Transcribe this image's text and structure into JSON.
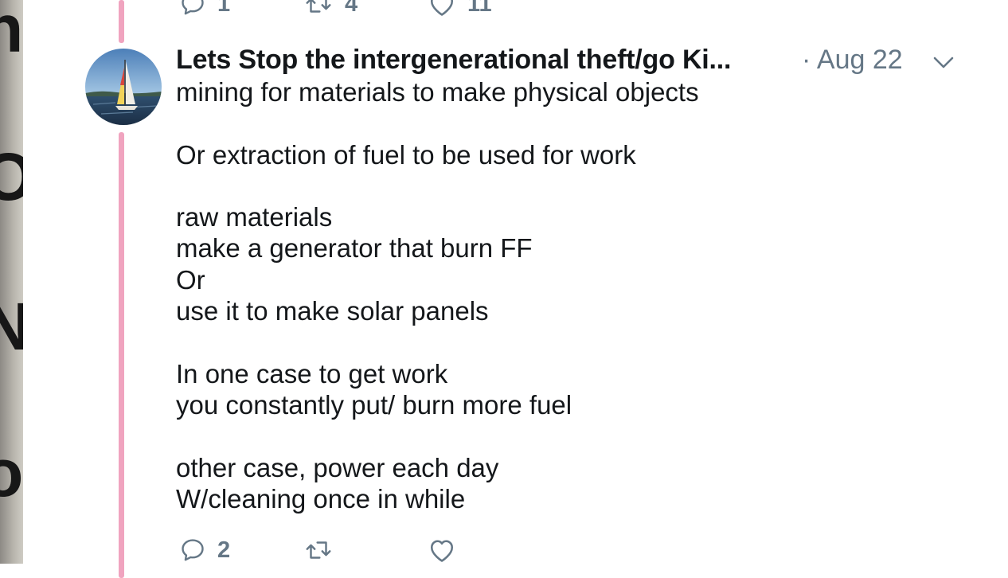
{
  "previous_tweet": {
    "actions": {
      "reply_count": "1",
      "retweet_count": "4",
      "like_count": "11"
    }
  },
  "tweet": {
    "display_name": "Lets Stop the intergenerational theft/go Ki...",
    "date": "· Aug 22",
    "body_lines": [
      "mining for materials to make physical objects",
      "",
      "Or extraction of fuel to be used for work",
      "",
      "raw materials",
      "make a generator that burn FF",
      "Or",
      "use it to make solar panels",
      "",
      "In one case to get work",
      "you constantly put/ burn more fuel",
      "",
      "other case, power each day",
      "W/cleaning once in while"
    ],
    "actions": {
      "reply_count": "2",
      "retweet_count": "",
      "like_count": ""
    }
  },
  "colors": {
    "thread_line": "#f0a4bf",
    "meta_gray": "#657786",
    "text": "#14171a"
  },
  "icons": {
    "reply": "reply-icon",
    "retweet": "retweet-icon",
    "like": "heart-icon",
    "menu": "chevron-down-icon"
  }
}
